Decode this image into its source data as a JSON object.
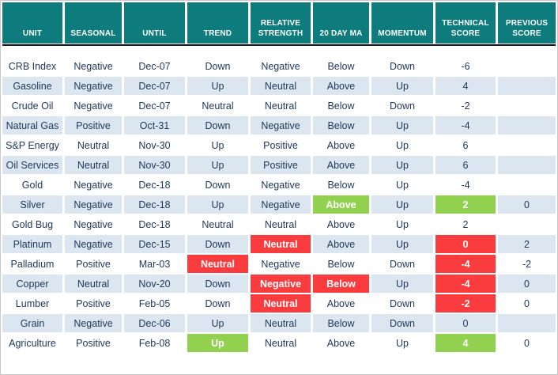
{
  "chart_data": {
    "type": "table",
    "columns": [
      "UNIT",
      "SEASONAL",
      "UNTIL",
      "TREND",
      "RELATIVE STRENGTH",
      "20 DAY MA",
      "MOMENTUM",
      "TECHNICAL SCORE",
      "PREVIOUS SCORE"
    ],
    "rows": [
      [
        "CRB Index",
        "Negative",
        "Dec-07",
        "Down",
        "Negative",
        "Below",
        "Down",
        "-6",
        ""
      ],
      [
        "Gasoline",
        "Negative",
        "Dec-07",
        "Up",
        "Neutral",
        "Above",
        "Up",
        "4",
        ""
      ],
      [
        "Crude Oil",
        "Negative",
        "Dec-07",
        "Neutral",
        "Neutral",
        "Below",
        "Down",
        "-2",
        ""
      ],
      [
        "Natural Gas",
        "Positive",
        "Oct-31",
        "Down",
        "Negative",
        "Below",
        "Up",
        "-4",
        ""
      ],
      [
        "S&P Energy",
        "Neutral",
        "Nov-30",
        "Up",
        "Positive",
        "Above",
        "Up",
        "6",
        ""
      ],
      [
        "Oil Services",
        "Neutral",
        "Nov-30",
        "Up",
        "Positive",
        "Above",
        "Up",
        "6",
        ""
      ],
      [
        "Gold",
        "Negative",
        "Dec-18",
        "Down",
        "Negative",
        "Below",
        "Up",
        "-4",
        ""
      ],
      [
        "Silver",
        "Negative",
        "Dec-18",
        "Up",
        "Negative",
        "Above",
        "Up",
        "2",
        "0"
      ],
      [
        "Gold Bug",
        "Negative",
        "Dec-18",
        "Neutral",
        "Neutral",
        "Above",
        "Up",
        "2",
        ""
      ],
      [
        "Platinum",
        "Negative",
        "Dec-15",
        "Down",
        "Neutral",
        "Above",
        "Up",
        "0",
        "2"
      ],
      [
        "Palladium",
        "Positive",
        "Mar-03",
        "Neutral",
        "Negative",
        "Below",
        "Down",
        "-4",
        "-2"
      ],
      [
        "Copper",
        "Neutral",
        "Nov-20",
        "Down",
        "Negative",
        "Below",
        "Up",
        "-4",
        "0"
      ],
      [
        "Lumber",
        "Positive",
        "Feb-05",
        "Down",
        "Neutral",
        "Above",
        "Down",
        "-2",
        "0"
      ],
      [
        "Grain",
        "Negative",
        "Dec-06",
        "Up",
        "Neutral",
        "Below",
        "Down",
        "0",
        ""
      ],
      [
        "Agriculture",
        "Positive",
        "Feb-08",
        "Up",
        "Neutral",
        "Above",
        "Up",
        "4",
        "0"
      ]
    ],
    "highlights": [
      {
        "row": 7,
        "col": 5,
        "style": "green"
      },
      {
        "row": 7,
        "col": 7,
        "style": "green"
      },
      {
        "row": 9,
        "col": 4,
        "style": "red"
      },
      {
        "row": 9,
        "col": 7,
        "style": "red"
      },
      {
        "row": 10,
        "col": 3,
        "style": "red"
      },
      {
        "row": 10,
        "col": 7,
        "style": "red"
      },
      {
        "row": 11,
        "col": 4,
        "style": "red"
      },
      {
        "row": 11,
        "col": 5,
        "style": "red"
      },
      {
        "row": 11,
        "col": 7,
        "style": "red"
      },
      {
        "row": 12,
        "col": 4,
        "style": "red"
      },
      {
        "row": 12,
        "col": 7,
        "style": "red"
      },
      {
        "row": 14,
        "col": 3,
        "style": "green"
      },
      {
        "row": 14,
        "col": 7,
        "style": "green"
      }
    ],
    "layout_hints": {
      "striped_rows": true,
      "stripe_pattern": "odd rows white, even rows light blue",
      "header_position": "top",
      "grid": "white gaps between cells"
    }
  },
  "colors": {
    "header_bg": "#0e7c7c",
    "header_text": "#ffffff",
    "header_underline": "#15151f",
    "row_alt": "#dce6f1",
    "body_text": "#20395c",
    "green": "#92d050",
    "red": "#fa3c3e"
  }
}
